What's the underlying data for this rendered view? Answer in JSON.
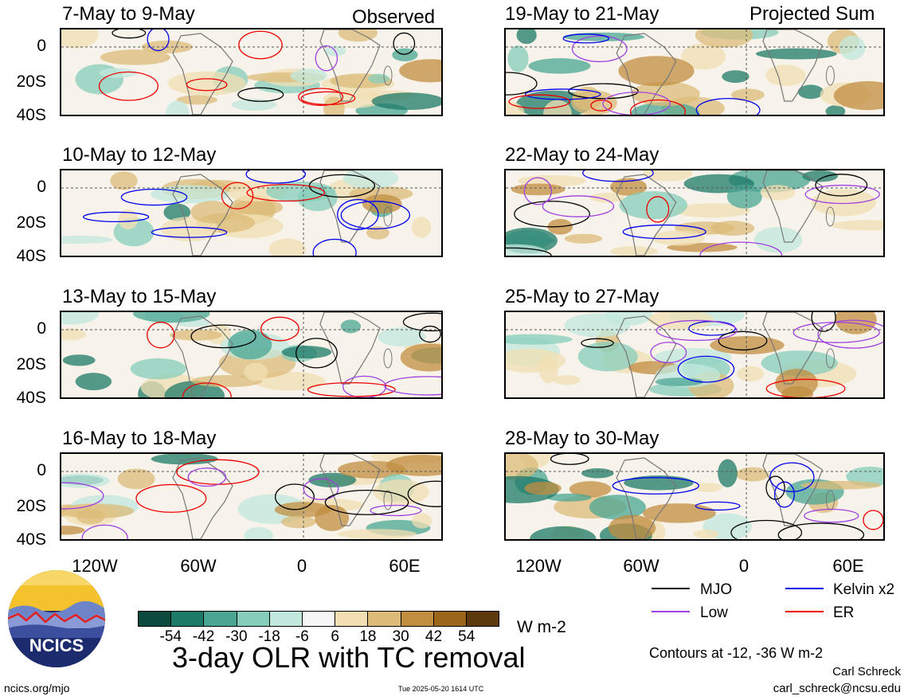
{
  "labels": {
    "observed": "Observed",
    "projected": "Projected Sum"
  },
  "panels_left": [
    {
      "title": "7-May to 9-May"
    },
    {
      "title": "10-May to 12-May"
    },
    {
      "title": "13-May to 15-May"
    },
    {
      "title": "16-May to 18-May"
    }
  ],
  "panels_right": [
    {
      "title": "19-May to 21-May"
    },
    {
      "title": "22-May to 24-May"
    },
    {
      "title": "25-May to 27-May"
    },
    {
      "title": "28-May to 30-May"
    }
  ],
  "y_ticks": [
    "0",
    "20S",
    "40S"
  ],
  "x_ticks": [
    "120W",
    "60W",
    "0",
    "60E"
  ],
  "colorbar": {
    "labels": [
      "-54",
      "-42",
      "-30",
      "-18",
      "-6",
      "6",
      "18",
      "30",
      "42",
      "54"
    ],
    "colors": [
      "#0b4a3c",
      "#1d7a67",
      "#4aa593",
      "#86cdbb",
      "#c2e8de",
      "#f6f6f6",
      "#f1dfb3",
      "#dcbb78",
      "#c18e40",
      "#9c661a",
      "#5c3a0c"
    ],
    "units": "W m-2"
  },
  "legend": {
    "items": [
      {
        "label": "MJO",
        "color": "#000000"
      },
      {
        "label": "Kelvin x2",
        "color": "#0000ee"
      },
      {
        "label": "Low",
        "color": "#a040e0"
      },
      {
        "label": "ER",
        "color": "#ee0000"
      }
    ],
    "contours": "Contours at -12, -36 W m-2"
  },
  "footer": {
    "main_title": "3-day OLR with TC removal",
    "logo_text": "NCICS",
    "url": "ncics.org/mjo",
    "timestamp": "Tue 2025-05-20 1614 UTC",
    "author": "Carl Schreck",
    "email": "carl_schreck@ncsu.edu"
  }
}
